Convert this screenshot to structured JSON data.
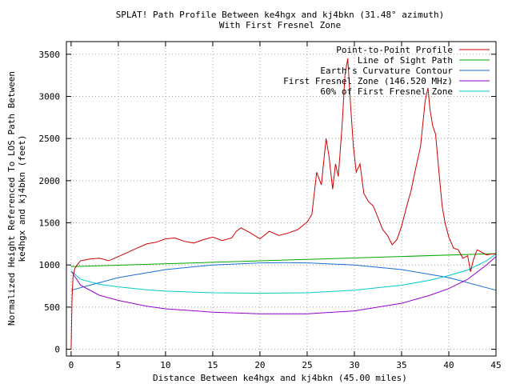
{
  "chart_data": {
    "type": "line",
    "title_lines": [
      "SPLAT! Path Profile Between ke4hgx and kj4bkn (31.48° azimuth)",
      "With First Fresnel Zone"
    ],
    "xlabel": "Distance Between ke4hgx and kj4bkn (45.00 miles)",
    "ylabel_lines": [
      "Normalized Height Referenced To LOS Path Between",
      "ke4hgx and kj4bkn (feet)"
    ],
    "xlim": [
      -0.5,
      45
    ],
    "ylim": [
      -80,
      3650
    ],
    "x_ticks": [
      0,
      5,
      10,
      15,
      20,
      25,
      30,
      35,
      40,
      45
    ],
    "y_ticks": [
      0,
      500,
      1000,
      1500,
      2000,
      2500,
      3000,
      3500
    ],
    "grid": true,
    "legend_position": "top-right",
    "series": [
      {
        "name": "Point-to-Point Profile",
        "color": "#cc0000",
        "x": [
          0,
          0.1,
          0.2,
          0.4,
          0.7,
          1,
          1.5,
          2,
          3,
          4,
          5,
          6,
          7,
          8,
          9,
          10,
          11,
          12,
          13,
          14,
          15,
          16,
          17,
          17.5,
          18,
          19,
          20,
          21,
          22,
          23,
          24,
          25,
          25.5,
          26,
          26.5,
          27,
          27.3,
          27.7,
          28,
          28.3,
          28.7,
          29,
          29.3,
          29.6,
          29.9,
          30.2,
          30.6,
          31,
          31.5,
          32,
          32.5,
          33,
          33.5,
          34,
          34.5,
          35,
          35.5,
          36,
          36.5,
          37,
          37.5,
          37.8,
          38,
          38.3,
          38.6,
          39,
          39.3,
          39.6,
          40,
          40.5,
          41,
          41.5,
          42,
          42.3,
          42.6,
          43,
          43.5,
          44,
          44.5,
          45
        ],
        "y": [
          0,
          620,
          860,
          960,
          1010,
          1050,
          1060,
          1070,
          1080,
          1050,
          1100,
          1150,
          1200,
          1250,
          1270,
          1310,
          1320,
          1280,
          1260,
          1300,
          1330,
          1290,
          1320,
          1400,
          1440,
          1380,
          1310,
          1400,
          1350,
          1380,
          1420,
          1510,
          1600,
          2100,
          1950,
          2500,
          2300,
          1900,
          2200,
          2050,
          2650,
          3250,
          3450,
          2900,
          2400,
          2100,
          2200,
          1850,
          1750,
          1700,
          1560,
          1420,
          1350,
          1240,
          1300,
          1460,
          1680,
          1880,
          2150,
          2400,
          2950,
          3100,
          2850,
          2650,
          2550,
          2050,
          1700,
          1500,
          1330,
          1200,
          1180,
          1080,
          1110,
          920,
          1060,
          1180,
          1150,
          1120,
          1130,
          1130
        ]
      },
      {
        "name": "Line of Sight Path",
        "color": "#00aa00",
        "x": [
          0,
          45
        ],
        "y": [
          980,
          1135
        ]
      },
      {
        "name": "Earth's Curvature Contour",
        "color": "#1a6fd4",
        "x": [
          0,
          5,
          10,
          15,
          20,
          22.5,
          25,
          30,
          35,
          40,
          45
        ],
        "y": [
          700,
          850,
          945,
          1000,
          1025,
          1028,
          1025,
          1000,
          945,
          850,
          700
        ]
      },
      {
        "name": "First Fresnel Zone (146.520 MHz)",
        "color": "#9900cc",
        "x": [
          0,
          1,
          3,
          5,
          8,
          10,
          15,
          20,
          25,
          30,
          35,
          38,
          40,
          42,
          44,
          45
        ],
        "y": [
          930,
          760,
          640,
          580,
          510,
          480,
          440,
          420,
          420,
          455,
          545,
          640,
          720,
          830,
          1000,
          1100
        ]
      },
      {
        "name": "60% of First Fresnel Zone",
        "color": "#00cccc",
        "x": [
          0,
          1,
          3,
          5,
          8,
          10,
          15,
          20,
          25,
          30,
          35,
          38,
          40,
          42,
          44,
          45
        ],
        "y": [
          930,
          830,
          770,
          740,
          705,
          690,
          670,
          665,
          670,
          700,
          760,
          820,
          875,
          940,
          1050,
          1130
        ]
      }
    ]
  }
}
